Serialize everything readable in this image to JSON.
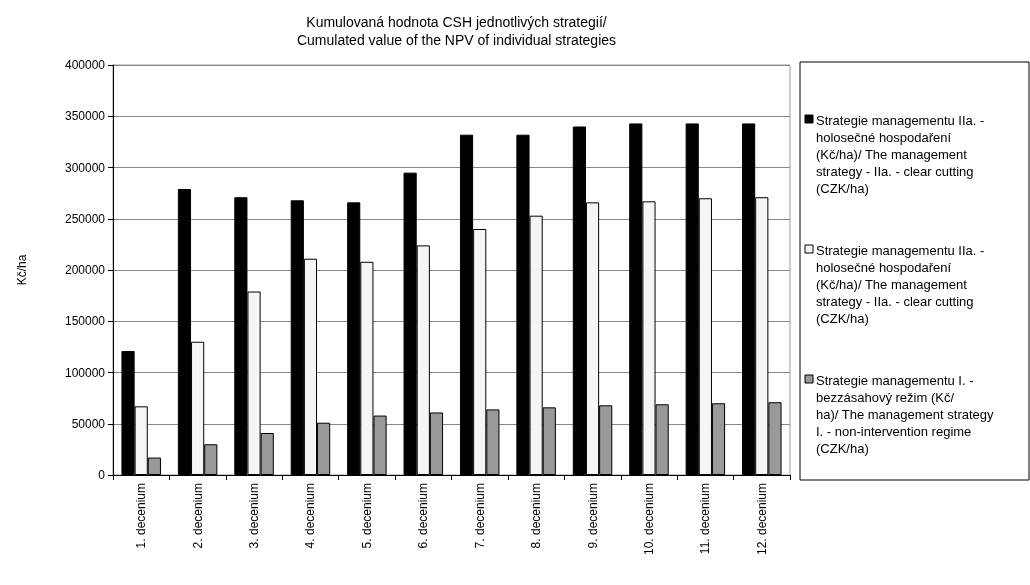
{
  "chart_data": {
    "type": "bar",
    "title": "Kumulovaná hodnota CSH jednotlivých strategií/\nCumulated value of the NPV of individual strategies",
    "ylabel": "Kč/ha",
    "categories": [
      "1. decenium",
      "2. decenium",
      "3. decenium",
      "4. decenium",
      "5. decenium",
      "6. decenium",
      "7. decenium",
      "8. decenium",
      "9. decenium",
      "10. decenium",
      "11. decenium",
      "12. decenium"
    ],
    "series": [
      {
        "name": "Strategie managementu IIa. - holosečné hospodaření (Kč/ha)/ The management strategy - IIa. - clear cutting (CZK/ha)",
        "color": "#000000",
        "values": [
          121000,
          279000,
          271000,
          268000,
          266000,
          295000,
          332000,
          332000,
          340000,
          343000,
          343000,
          343000
        ]
      },
      {
        "name": "Strategie managementu IIa. - holosečné hospodaření (Kč/ha)/ The management strategy - IIa. - clear cutting (CZK/ha)",
        "color": "#f5f5f5",
        "values": [
          67000,
          130000,
          179000,
          211000,
          208000,
          224000,
          240000,
          253000,
          266000,
          267000,
          270000,
          271000
        ]
      },
      {
        "name": "Strategie managementu I. - bezzásahový režim (Kč/ha)/ The management strategy I. - non-intervention regime (CZK/ha)",
        "color": "#999999",
        "values": [
          17000,
          30000,
          41000,
          51000,
          58000,
          61000,
          64000,
          66000,
          68000,
          69000,
          70000,
          71000
        ]
      }
    ],
    "ylim": [
      0,
      400000
    ],
    "yticks": [
      0,
      50000,
      100000,
      150000,
      200000,
      250000,
      300000,
      350000,
      400000
    ],
    "grid": "y",
    "legend": "right"
  }
}
